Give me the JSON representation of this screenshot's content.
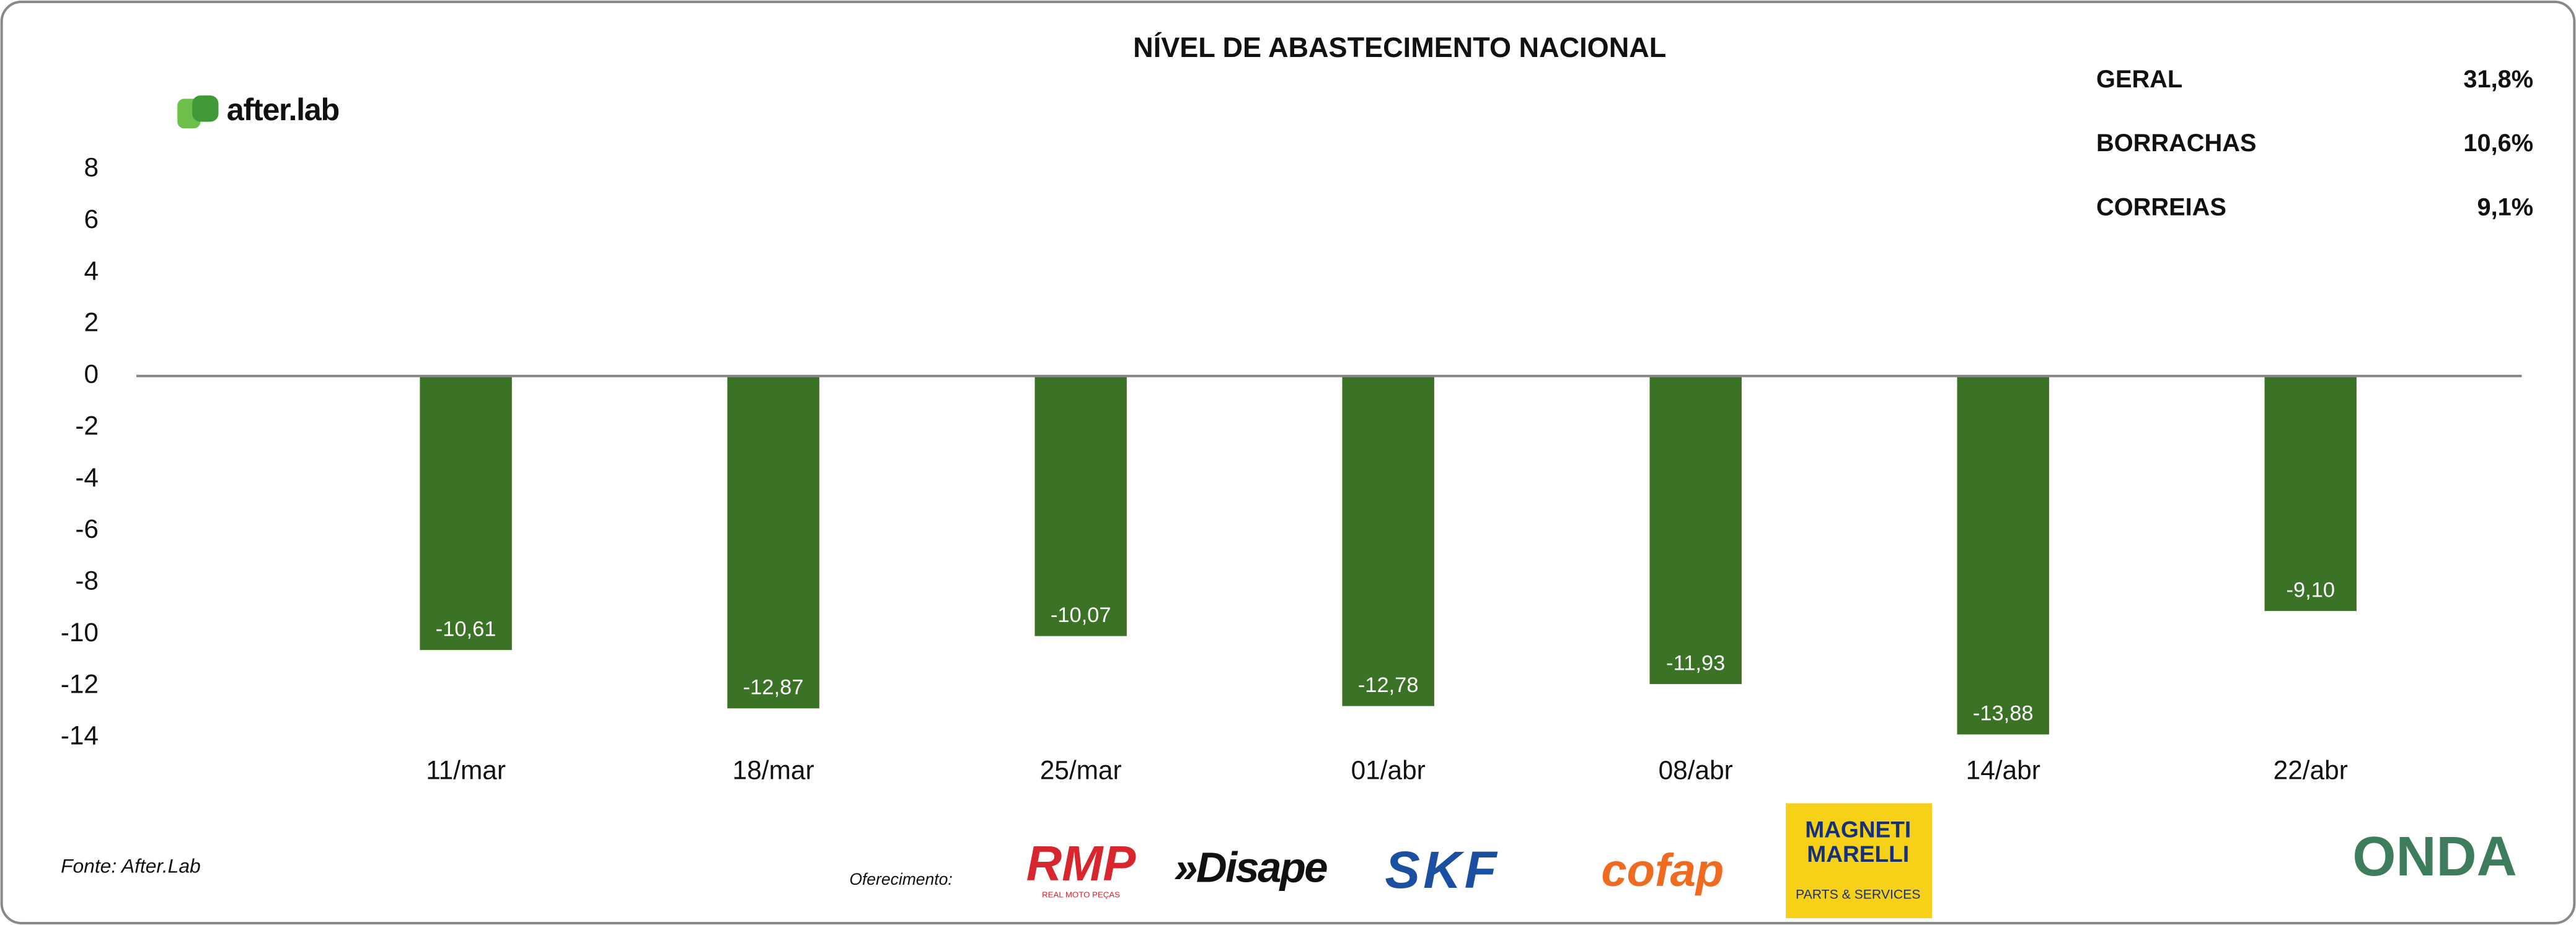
{
  "chart_data": {
    "type": "bar",
    "title": "NÍVEL DE ABASTECIMENTO NACIONAL",
    "categories": [
      "11/mar",
      "18/mar",
      "25/mar",
      "01/abr",
      "08/abr",
      "14/abr",
      "22/abr"
    ],
    "values": [
      -10.61,
      -12.87,
      -10.07,
      -12.78,
      -11.93,
      -13.88,
      -9.1
    ],
    "value_labels": [
      "-10,61",
      "-12,87",
      "-10,07",
      "-12,78",
      "-11,93",
      "-13,88",
      "-9,10"
    ],
    "color": "#3a7226",
    "ylim": [
      -14,
      8
    ],
    "yticks": [
      8,
      6,
      4,
      2,
      0,
      -2,
      -4,
      -6,
      -8,
      -10,
      -12,
      -14
    ],
    "grid": false
  },
  "summary": [
    {
      "label": "GERAL",
      "value": "31,8%"
    },
    {
      "label": "BORRACHAS",
      "value": "10,6%"
    },
    {
      "label": "CORREIAS",
      "value": "9,1%"
    }
  ],
  "brand": "after.lab",
  "source": "Fonte: After.Lab",
  "sponsor_label": "Oferecimento:",
  "sponsors": {
    "rmp": "RMP",
    "rmp_sub": "REAL MOTO PEÇAS",
    "disape": "»Disape",
    "skf": "SKF",
    "cofap": "cofap",
    "magneti_1": "MAGNETI",
    "magneti_2": "MARELLI",
    "magneti_sub": "PARTS & SERVICES"
  },
  "partner": "ONDA"
}
